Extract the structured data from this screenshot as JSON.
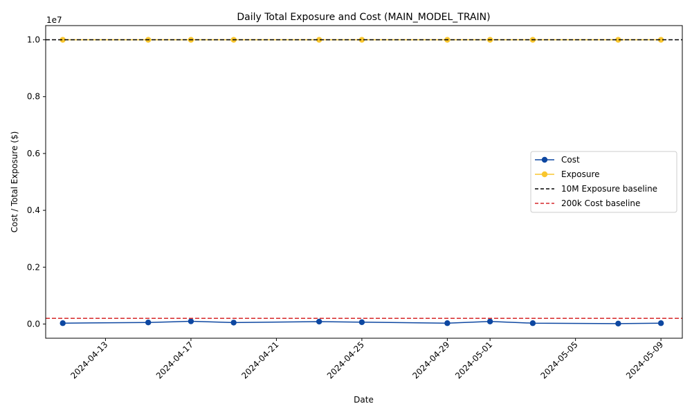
{
  "chart_data": {
    "type": "line",
    "title": "Daily Total Exposure and Cost (MAIN_MODEL_TRAIN)",
    "xlabel": "Date",
    "ylabel": "Cost / Total Exposure ($)",
    "y_multiplier_label": "1e7",
    "x_dates": [
      "2024-04-11",
      "2024-04-15",
      "2024-04-17",
      "2024-04-19",
      "2024-04-23",
      "2024-04-25",
      "2024-04-29",
      "2024-05-01",
      "2024-05-03",
      "2024-05-07",
      "2024-05-09"
    ],
    "xlim": [
      "2024-04-10.2",
      "2024-05-10.0"
    ],
    "ylim": [
      -500000,
      10500000
    ],
    "x_ticks": [
      "2024-04-13",
      "2024-04-17",
      "2024-04-21",
      "2024-04-25",
      "2024-04-29",
      "2024-05-01",
      "2024-05-05",
      "2024-05-09"
    ],
    "y_ticks": [
      0,
      2000000,
      4000000,
      6000000,
      8000000,
      10000000
    ],
    "y_tick_labels": [
      "0.0",
      "0.2",
      "0.4",
      "0.6",
      "0.8",
      "1.0"
    ],
    "series": [
      {
        "name": "Cost",
        "color": "#0d47a1",
        "marker": "circle",
        "values": [
          30000,
          55000,
          95000,
          50000,
          85000,
          65000,
          30000,
          90000,
          30000,
          15000,
          30000
        ]
      },
      {
        "name": "Exposure",
        "color": "#f9c62e",
        "marker": "circle",
        "values": [
          10000000,
          10000000,
          10000000,
          10000000,
          10000000,
          10000000,
          10000000,
          10000000,
          10000000,
          10000000,
          10000000
        ]
      }
    ],
    "baselines": [
      {
        "name": "10M Exposure baseline",
        "value": 10000000,
        "color": "#000000",
        "style": "dashed"
      },
      {
        "name": "200k Cost baseline",
        "value": 200000,
        "color": "#d62728",
        "style": "dashed"
      }
    ],
    "legend_position": "center-right",
    "grid": false
  }
}
